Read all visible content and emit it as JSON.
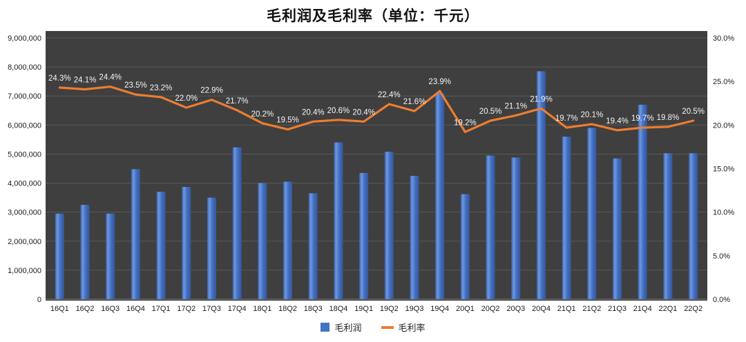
{
  "chart_data": {
    "type": "bar",
    "subtype": "combo-bar-line",
    "title": "毛利润及毛利率（单位：千元）",
    "categories": [
      "16Q1",
      "16Q2",
      "16Q3",
      "16Q4",
      "17Q1",
      "17Q2",
      "17Q3",
      "17Q4",
      "18Q1",
      "18Q2",
      "18Q3",
      "18Q4",
      "19Q1",
      "19Q2",
      "19Q3",
      "19Q4",
      "20Q1",
      "20Q2",
      "20Q3",
      "20Q4",
      "21Q1",
      "21Q2",
      "21Q3",
      "21Q4",
      "22Q1",
      "22Q2"
    ],
    "series": [
      {
        "name": "毛利润",
        "type": "bar",
        "axis": "left",
        "color": "#4472C4",
        "values": [
          2950000,
          3250000,
          2950000,
          4480000,
          3700000,
          3870000,
          3500000,
          5230000,
          4000000,
          4050000,
          3650000,
          5400000,
          4350000,
          5080000,
          4250000,
          7100000,
          3620000,
          4950000,
          4880000,
          7850000,
          5600000,
          5900000,
          4850000,
          6700000,
          5030000,
          5030000
        ]
      },
      {
        "name": "毛利率",
        "type": "line",
        "axis": "right",
        "color": "#ED7D31",
        "values": [
          24.3,
          24.1,
          24.4,
          23.5,
          23.2,
          22.0,
          22.9,
          21.7,
          20.2,
          19.5,
          20.4,
          20.6,
          20.4,
          22.4,
          21.6,
          23.9,
          19.2,
          20.5,
          21.1,
          21.9,
          19.7,
          20.1,
          19.4,
          19.7,
          19.8,
          20.5
        ],
        "labels": [
          "24.3%",
          "24.1%",
          "24.4%",
          "23.5%",
          "23.2%",
          "22.0%",
          "22.9%",
          "21.7%",
          "20.2%",
          "19.5%",
          "20.4%",
          "20.6%",
          "20.4%",
          "22.4%",
          "21.6%",
          "23.9%",
          "19.2%",
          "20.5%",
          "21.1%",
          "21.9%",
          "19.7%",
          "20.1%",
          "19.4%",
          "19.7%",
          "19.8%",
          "20.5%"
        ]
      }
    ],
    "left_axis": {
      "min": 0,
      "max": 9000000,
      "step": 1000000,
      "tick_labels": [
        "0",
        "1,000,000",
        "2,000,000",
        "3,000,000",
        "4,000,000",
        "5,000,000",
        "6,000,000",
        "7,000,000",
        "8,000,000",
        "9,000,000"
      ]
    },
    "right_axis": {
      "min": 0,
      "max": 30,
      "step": 5,
      "tick_labels": [
        "0.0%",
        "5.0%",
        "10.0%",
        "15.0%",
        "20.0%",
        "25.0%",
        "30.0%"
      ]
    },
    "legend_position": "bottom",
    "grid": true,
    "plot_bg": "#3F3F3F",
    "gridline_color": "#595959",
    "axis_line_color": "#7F7F7F",
    "data_label_color": "#F5F5F5",
    "axis_text_color": "#1A1A1A"
  }
}
